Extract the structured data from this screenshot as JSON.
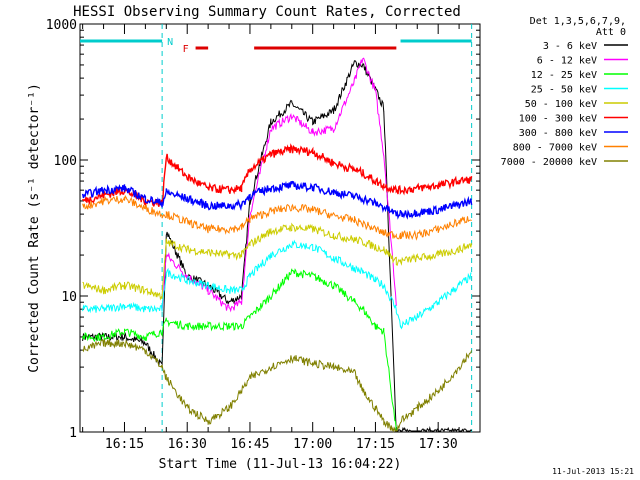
{
  "chart_data": {
    "type": "line",
    "title": "HESSI Observing Summary Count Rates, Corrected",
    "xlabel": "Start Time (11-Jul-13 16:04:22)",
    "ylabel": "Corrected Count Rate (s⁻¹ detector⁻¹)",
    "x_unit": "UT time (HH:MM, 11-Jul-2013)",
    "xlim": [
      "16:04:22",
      "17:40:00"
    ],
    "ylim": [
      1,
      1000
    ],
    "y_scale": "log",
    "grid": false,
    "legend_position": "right",
    "legend_header": [
      "Det 1,3,5,6,7,9,",
      "Att 0"
    ],
    "x_ticks": [
      "16:15",
      "16:30",
      "16:45",
      "17:00",
      "17:15",
      "17:30"
    ],
    "y_ticks": [
      "1",
      "10",
      "100",
      "1000"
    ],
    "footer_date": "11-Jul-2013 15:21",
    "x": [
      "16:05",
      "16:10",
      "16:15",
      "16:20",
      "16:24",
      "16:25",
      "16:30",
      "16:35",
      "16:40",
      "16:43",
      "16:45",
      "16:50",
      "16:55",
      "17:00",
      "17:05",
      "17:10",
      "17:12",
      "17:15",
      "17:17",
      "17:20",
      "17:21",
      "17:25",
      "17:30",
      "17:35",
      "17:38"
    ],
    "series": [
      {
        "name": "3 - 6 keV",
        "color": "#000000",
        "values": [
          5.0,
          5.0,
          5.0,
          4.5,
          3.0,
          30,
          14,
          12,
          9,
          10,
          50,
          190,
          260,
          190,
          230,
          520,
          500,
          330,
          240,
          1,
          1,
          1,
          1,
          1,
          1
        ]
      },
      {
        "name": "6 - 12 keV",
        "color": "#ff00ff",
        "values": [
          null,
          null,
          null,
          null,
          8,
          20,
          14,
          11,
          8,
          9,
          40,
          170,
          210,
          160,
          170,
          380,
          560,
          320,
          110,
          9,
          null,
          null,
          null,
          null,
          null
        ]
      },
      {
        "name": "12 - 25 keV",
        "color": "#00ff00",
        "values": [
          5,
          5,
          5.5,
          5,
          5.5,
          6.5,
          6,
          6,
          6,
          6,
          7,
          10,
          15,
          14,
          12,
          9,
          8,
          6,
          5.5,
          1,
          null,
          null,
          null,
          null,
          null
        ]
      },
      {
        "name": "25 - 50 keV",
        "color": "#00ffff",
        "values": [
          8,
          8,
          8.5,
          8,
          8,
          15,
          13,
          12,
          11,
          11,
          14,
          20,
          24,
          23,
          19,
          16,
          15,
          13,
          12,
          8,
          6,
          7,
          9,
          12,
          14
        ]
      },
      {
        "name": "50 - 100 keV",
        "color": "#cccc00",
        "values": [
          12,
          11,
          12,
          11,
          10,
          25,
          22,
          21,
          20,
          20,
          24,
          30,
          32,
          31,
          28,
          26,
          25,
          23,
          22,
          18,
          18,
          19,
          20,
          22,
          24
        ]
      },
      {
        "name": "100 - 300 keV",
        "color": "#ff0000",
        "values": [
          50,
          55,
          60,
          50,
          48,
          105,
          75,
          62,
          60,
          62,
          85,
          110,
          120,
          115,
          95,
          85,
          80,
          70,
          65,
          60,
          60,
          62,
          65,
          70,
          72
        ]
      },
      {
        "name": "300 - 800 keV",
        "color": "#0000ff",
        "values": [
          55,
          60,
          62,
          52,
          48,
          58,
          52,
          46,
          46,
          47,
          55,
          62,
          65,
          63,
          58,
          54,
          52,
          48,
          45,
          40,
          40,
          41,
          43,
          47,
          50
        ]
      },
      {
        "name": "800 - 7000 keV",
        "color": "#ff8000",
        "values": [
          45,
          50,
          52,
          44,
          40,
          40,
          35,
          31,
          31,
          32,
          37,
          42,
          45,
          43,
          39,
          36,
          34,
          31,
          29,
          28,
          28,
          28,
          31,
          35,
          38
        ]
      },
      {
        "name": "7000 - 20000 keV",
        "color": "#808000",
        "values": [
          4,
          4.5,
          4.5,
          4,
          3,
          2.5,
          1.5,
          1.2,
          1.5,
          2,
          2.5,
          3,
          3.5,
          3.2,
          3,
          2.7,
          2,
          1.5,
          1.2,
          1,
          1.2,
          1.5,
          2,
          3,
          4
        ]
      }
    ],
    "annotations": [
      {
        "label": "N",
        "color": "#00cccc",
        "kind": "night",
        "segments": [
          [
            "16:04:22",
            "16:24"
          ],
          [
            "17:21",
            "17:38"
          ]
        ]
      },
      {
        "label": "F",
        "color": "#dd0000",
        "kind": "flare flag",
        "segments": [
          [
            "16:32",
            "16:35"
          ],
          [
            "16:46",
            "17:20"
          ]
        ]
      }
    ],
    "vertical_lines": [
      "16:24",
      "17:38"
    ]
  }
}
